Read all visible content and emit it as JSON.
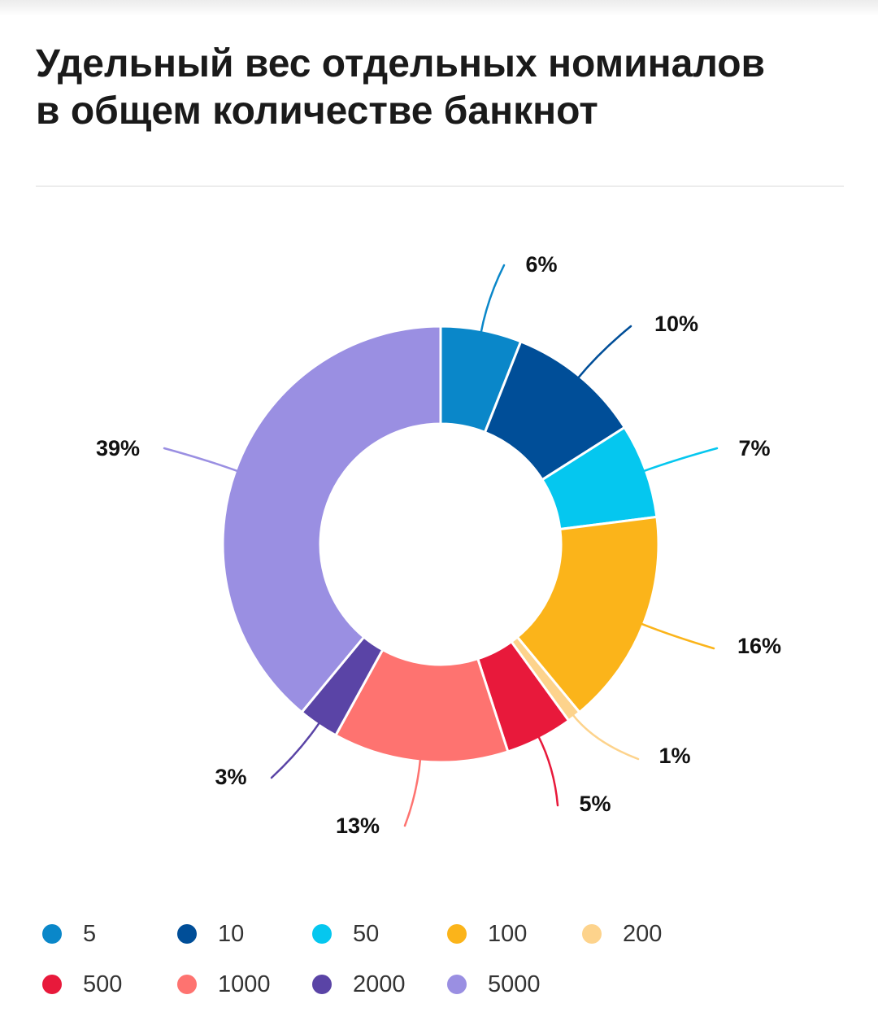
{
  "title": {
    "line1": "Удельный вес отдельных номиналов",
    "line2": "в общем количестве банкнот"
  },
  "chart_data": {
    "type": "pie",
    "variant": "donut",
    "title": "Удельный вес отдельных номиналов в общем количестве банкнот",
    "legend_placement": "bottom",
    "slices": [
      {
        "name": "5",
        "value": 6,
        "label": "6%",
        "color": "#0a87c9"
      },
      {
        "name": "10",
        "value": 10,
        "label": "10%",
        "color": "#004e98"
      },
      {
        "name": "50",
        "value": 7,
        "label": "7%",
        "color": "#05c7ef"
      },
      {
        "name": "100",
        "value": 16,
        "label": "16%",
        "color": "#fbb41a"
      },
      {
        "name": "200",
        "value": 1,
        "label": "1%",
        "color": "#fdd38c"
      },
      {
        "name": "500",
        "value": 5,
        "label": "5%",
        "color": "#e8193b"
      },
      {
        "name": "1000",
        "value": 13,
        "label": "13%",
        "color": "#fe7370"
      },
      {
        "name": "2000",
        "value": 3,
        "label": "3%",
        "color": "#5a44a6"
      },
      {
        "name": "5000",
        "value": 39,
        "label": "39%",
        "color": "#9a8fe2"
      }
    ]
  }
}
